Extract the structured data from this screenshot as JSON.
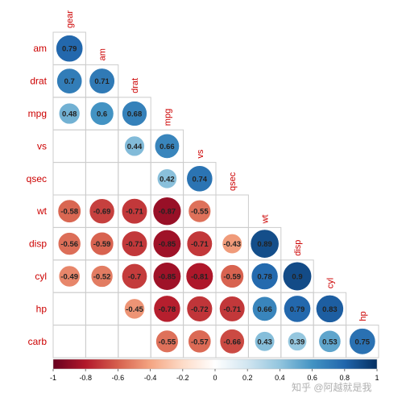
{
  "chart_data": {
    "type": "heatmap",
    "variables": [
      "gear",
      "am",
      "drat",
      "mpg",
      "vs",
      "qsec",
      "wt",
      "disp",
      "cyl",
      "hp",
      "carb"
    ],
    "row_labels": [
      "am",
      "drat",
      "mpg",
      "vs",
      "qsec",
      "wt",
      "disp",
      "cyl",
      "hp",
      "carb"
    ],
    "column_labels": [
      "gear",
      "am",
      "drat",
      "mpg",
      "vs",
      "qsec",
      "wt",
      "disp",
      "cyl",
      "hp"
    ],
    "cells": [
      {
        "row": "am",
        "col": "gear",
        "value": 0.79
      },
      {
        "row": "drat",
        "col": "gear",
        "value": 0.7
      },
      {
        "row": "drat",
        "col": "am",
        "value": 0.71
      },
      {
        "row": "mpg",
        "col": "gear",
        "value": 0.48
      },
      {
        "row": "mpg",
        "col": "am",
        "value": 0.6
      },
      {
        "row": "mpg",
        "col": "drat",
        "value": 0.68
      },
      {
        "row": "vs",
        "col": "drat",
        "value": 0.44
      },
      {
        "row": "vs",
        "col": "mpg",
        "value": 0.66
      },
      {
        "row": "qsec",
        "col": "mpg",
        "value": 0.42
      },
      {
        "row": "qsec",
        "col": "vs",
        "value": 0.74
      },
      {
        "row": "wt",
        "col": "gear",
        "value": -0.58
      },
      {
        "row": "wt",
        "col": "am",
        "value": -0.69
      },
      {
        "row": "wt",
        "col": "drat",
        "value": -0.71
      },
      {
        "row": "wt",
        "col": "mpg",
        "value": -0.87
      },
      {
        "row": "wt",
        "col": "vs",
        "value": -0.55
      },
      {
        "row": "disp",
        "col": "gear",
        "value": -0.56
      },
      {
        "row": "disp",
        "col": "am",
        "value": -0.59
      },
      {
        "row": "disp",
        "col": "drat",
        "value": -0.71
      },
      {
        "row": "disp",
        "col": "mpg",
        "value": -0.85
      },
      {
        "row": "disp",
        "col": "vs",
        "value": -0.71
      },
      {
        "row": "disp",
        "col": "qsec",
        "value": -0.43
      },
      {
        "row": "disp",
        "col": "wt",
        "value": 0.89
      },
      {
        "row": "cyl",
        "col": "gear",
        "value": -0.49
      },
      {
        "row": "cyl",
        "col": "am",
        "value": -0.52
      },
      {
        "row": "cyl",
        "col": "drat",
        "value": -0.7
      },
      {
        "row": "cyl",
        "col": "mpg",
        "value": -0.85
      },
      {
        "row": "cyl",
        "col": "vs",
        "value": -0.81
      },
      {
        "row": "cyl",
        "col": "qsec",
        "value": -0.59
      },
      {
        "row": "cyl",
        "col": "wt",
        "value": 0.78
      },
      {
        "row": "cyl",
        "col": "disp",
        "value": 0.9
      },
      {
        "row": "hp",
        "col": "drat",
        "value": -0.45
      },
      {
        "row": "hp",
        "col": "mpg",
        "value": -0.78
      },
      {
        "row": "hp",
        "col": "vs",
        "value": -0.72
      },
      {
        "row": "hp",
        "col": "qsec",
        "value": -0.71
      },
      {
        "row": "hp",
        "col": "wt",
        "value": 0.66
      },
      {
        "row": "hp",
        "col": "disp",
        "value": 0.79
      },
      {
        "row": "hp",
        "col": "cyl",
        "value": 0.83
      },
      {
        "row": "carb",
        "col": "mpg",
        "value": -0.55
      },
      {
        "row": "carb",
        "col": "vs",
        "value": -0.57
      },
      {
        "row": "carb",
        "col": "qsec",
        "value": -0.66
      },
      {
        "row": "carb",
        "col": "wt",
        "value": 0.43
      },
      {
        "row": "carb",
        "col": "disp",
        "value": 0.39
      },
      {
        "row": "carb",
        "col": "cyl",
        "value": 0.53
      },
      {
        "row": "carb",
        "col": "hp",
        "value": 0.75
      }
    ],
    "colorbar": {
      "range": [
        -1,
        1
      ],
      "ticks": [
        "-1",
        "-0.8",
        "-0.6",
        "-0.4",
        "-0.2",
        "0",
        "0.2",
        "0.4",
        "0.6",
        "0.8",
        "1"
      ],
      "colors": [
        "#67001f",
        "#b2182b",
        "#d6604d",
        "#f4a582",
        "#fddbc7",
        "#ffffff",
        "#d1e5f0",
        "#92c5de",
        "#4393c3",
        "#2166ac",
        "#053061"
      ]
    },
    "title": "",
    "grid": true
  },
  "watermark": "知乎 @阿越就是我"
}
